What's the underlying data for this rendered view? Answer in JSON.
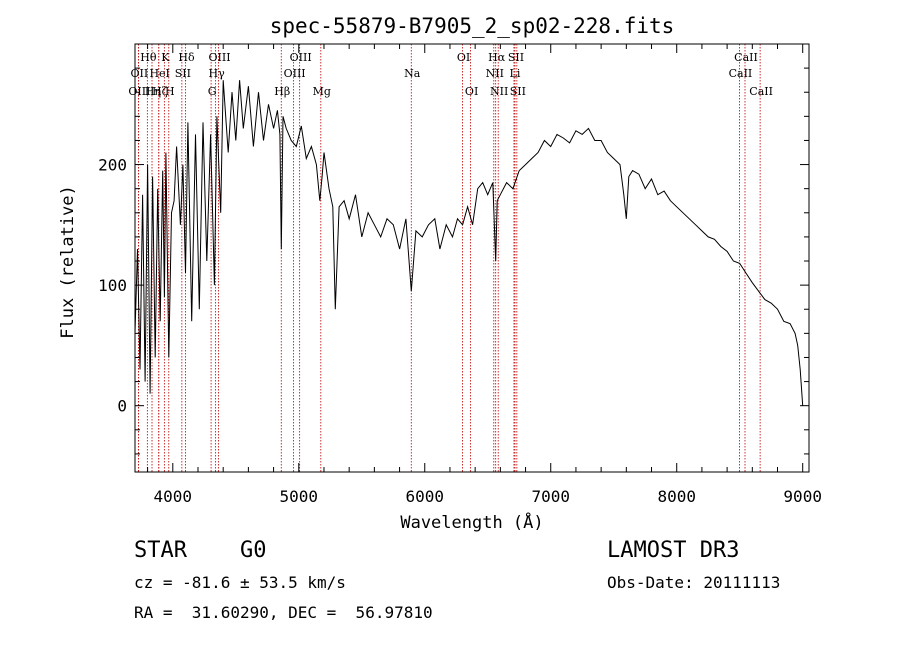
{
  "chart_data": {
    "type": "line",
    "title": "spec-55879-B7905_2_sp02-228.fits",
    "xlabel": "Wavelength (Å)",
    "ylabel": "Flux (relative)",
    "xlim": [
      3700,
      9050
    ],
    "ylim": [
      -55,
      300
    ],
    "x_ticks": [
      4000,
      5000,
      6000,
      7000,
      8000,
      9000
    ],
    "y_ticks": [
      0,
      100,
      200
    ],
    "grid": false,
    "series": [
      {
        "name": "flux",
        "x": [
          3700,
          3720,
          3740,
          3760,
          3780,
          3800,
          3820,
          3840,
          3860,
          3880,
          3900,
          3920,
          3933,
          3945,
          3968,
          3990,
          4010,
          4030,
          4060,
          4080,
          4101,
          4120,
          4150,
          4180,
          4210,
          4240,
          4270,
          4300,
          4330,
          4350,
          4380,
          4400,
          4440,
          4470,
          4500,
          4530,
          4560,
          4600,
          4640,
          4680,
          4720,
          4760,
          4800,
          4830,
          4850,
          4861,
          4875,
          4900,
          4940,
          4980,
          5020,
          5060,
          5100,
          5140,
          5167,
          5185,
          5200,
          5240,
          5270,
          5290,
          5320,
          5360,
          5400,
          5450,
          5500,
          5550,
          5600,
          5650,
          5700,
          5750,
          5800,
          5850,
          5893,
          5930,
          5980,
          6030,
          6080,
          6120,
          6170,
          6220,
          6260,
          6300,
          6340,
          6380,
          6420,
          6460,
          6500,
          6540,
          6563,
          6575,
          6600,
          6650,
          6700,
          6750,
          6800,
          6850,
          6900,
          6950,
          7000,
          7050,
          7100,
          7150,
          7200,
          7250,
          7300,
          7350,
          7400,
          7450,
          7500,
          7550,
          7580,
          7600,
          7620,
          7650,
          7700,
          7750,
          7800,
          7850,
          7900,
          7950,
          8000,
          8050,
          8100,
          8150,
          8200,
          8250,
          8300,
          8350,
          8400,
          8450,
          8500,
          8550,
          8600,
          8650,
          8700,
          8750,
          8800,
          8850,
          8900,
          8940,
          8960,
          8980,
          9000
        ],
        "values": [
          60,
          130,
          30,
          175,
          20,
          200,
          10,
          190,
          40,
          180,
          70,
          195,
          90,
          210,
          40,
          160,
          170,
          215,
          150,
          200,
          110,
          235,
          70,
          225,
          80,
          235,
          120,
          225,
          100,
          240,
          160,
          270,
          210,
          260,
          220,
          270,
          230,
          265,
          215,
          260,
          220,
          250,
          230,
          245,
          225,
          130,
          240,
          230,
          220,
          215,
          232,
          205,
          215,
          200,
          170,
          190,
          210,
          180,
          165,
          80,
          165,
          170,
          155,
          175,
          140,
          160,
          150,
          140,
          155,
          150,
          130,
          155,
          95,
          145,
          140,
          150,
          155,
          130,
          150,
          140,
          155,
          150,
          165,
          150,
          180,
          185,
          175,
          185,
          120,
          170,
          175,
          185,
          180,
          195,
          200,
          205,
          210,
          220,
          215,
          225,
          222,
          218,
          228,
          225,
          230,
          220,
          220,
          210,
          205,
          200,
          175,
          155,
          190,
          195,
          192,
          180,
          188,
          175,
          178,
          170,
          165,
          160,
          155,
          150,
          145,
          140,
          138,
          132,
          128,
          120,
          118,
          110,
          102,
          95,
          88,
          85,
          80,
          70,
          68,
          60,
          50,
          30,
          0
        ]
      }
    ],
    "line_markers": [
      {
        "label": "Hθ",
        "x": 3798,
        "row": 1
      },
      {
        "label": "OII",
        "x": 3727,
        "row": 2
      },
      {
        "label": "OIII",
        "x": 3727,
        "row": 3
      },
      {
        "label": "Hη",
        "x": 3835,
        "row": 3
      },
      {
        "label": "Hζ",
        "x": 3889,
        "row": 3
      },
      {
        "label": "HeI",
        "x": 3888,
        "row": 2
      },
      {
        "label": "K",
        "x": 3933,
        "row": 1
      },
      {
        "label": "H",
        "x": 3968,
        "row": 3
      },
      {
        "label": "SII",
        "x": 4072,
        "row": 2
      },
      {
        "label": "Hδ",
        "x": 4101,
        "row": 1
      },
      {
        "label": "G",
        "x": 4304,
        "row": 3
      },
      {
        "label": "Hγ",
        "x": 4340,
        "row": 2
      },
      {
        "label": "OIII",
        "x": 4363,
        "row": 1
      },
      {
        "label": "Hβ",
        "x": 4861,
        "row": 3
      },
      {
        "label": "OIII",
        "x": 4959,
        "row": 2
      },
      {
        "label": "OIII",
        "x": 5007,
        "row": 1
      },
      {
        "label": "Mg",
        "x": 5175,
        "row": 3
      },
      {
        "label": "Na",
        "x": 5893,
        "row": 2
      },
      {
        "label": "OI",
        "x": 6300,
        "row": 1
      },
      {
        "label": "OI",
        "x": 6364,
        "row": 3
      },
      {
        "label": "NII",
        "x": 6548,
        "row": 2
      },
      {
        "label": "Hα",
        "x": 6563,
        "row": 1
      },
      {
        "label": "NII",
        "x": 6583,
        "row": 3
      },
      {
        "label": "Li",
        "x": 6708,
        "row": 2
      },
      {
        "label": "SII",
        "x": 6716,
        "row": 1
      },
      {
        "label": "SII",
        "x": 6731,
        "row": 3
      },
      {
        "label": "CaII",
        "x": 8498,
        "row": 2
      },
      {
        "label": "CaII",
        "x": 8542,
        "row": 1
      },
      {
        "label": "CaII",
        "x": 8662,
        "row": 3
      }
    ]
  },
  "info": {
    "object_class": "STAR",
    "subclass": "G0",
    "survey": "LAMOST DR3",
    "cz": "cz = -81.6 ± 53.5 km/s",
    "obs_date": "Obs-Date: 20111113",
    "coords": "RA =  31.60290, DEC =  56.97810"
  }
}
